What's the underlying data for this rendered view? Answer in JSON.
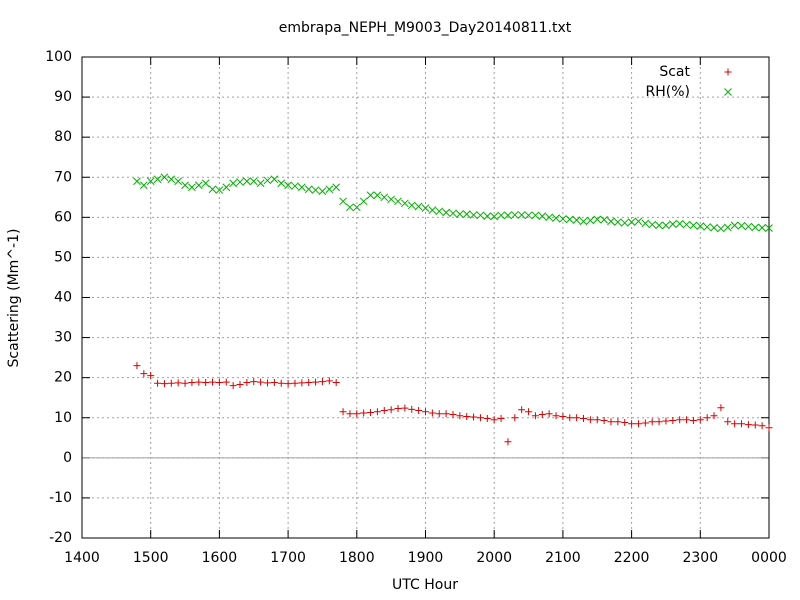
{
  "chart_data": {
    "type": "scatter",
    "title": "embrapa_NEPH_M9003_Day20140811.txt",
    "x_label": "UTC Hour",
    "y_label": "Scattering (Mm^-1)",
    "xlim": [
      1400,
      2400
    ],
    "xticks": [
      1400,
      1500,
      1600,
      1700,
      1800,
      1900,
      2000,
      2100,
      2200,
      2300,
      {
        "value": 2400,
        "label": "0000"
      }
    ],
    "ylim": [
      -20,
      100
    ],
    "yticks": [
      -20,
      -10,
      0,
      10,
      20,
      30,
      40,
      50,
      60,
      70,
      80,
      90,
      100
    ],
    "grid": true,
    "legend": "top-right",
    "x": [
      1480,
      1490,
      1500,
      1510,
      1520,
      1530,
      1540,
      1550,
      1560,
      1570,
      1580,
      1590,
      1600,
      1610,
      1620,
      1630,
      1640,
      1650,
      1660,
      1670,
      1680,
      1690,
      1700,
      1710,
      1720,
      1730,
      1740,
      1750,
      1760,
      1770,
      1780,
      1790,
      1800,
      1810,
      1820,
      1830,
      1840,
      1850,
      1860,
      1870,
      1880,
      1890,
      1900,
      1910,
      1920,
      1930,
      1940,
      1950,
      1960,
      1970,
      1980,
      1990,
      2000,
      2010,
      2020,
      2030,
      2040,
      2050,
      2060,
      2070,
      2080,
      2090,
      2100,
      2110,
      2120,
      2130,
      2140,
      2150,
      2160,
      2170,
      2180,
      2190,
      2200,
      2210,
      2220,
      2230,
      2240,
      2250,
      2260,
      2270,
      2280,
      2290,
      2300,
      2310,
      2320,
      2330,
      2340,
      2350,
      2360,
      2370,
      2380,
      2390,
      2400
    ],
    "series": [
      {
        "name": "Scat",
        "color": "#e00000",
        "marker": "+",
        "values": [
          23,
          21,
          20.5,
          18.6,
          18.5,
          18.6,
          18.7,
          18.6,
          18.8,
          18.9,
          18.8,
          18.9,
          18.8,
          18.9,
          18,
          18.3,
          18.8,
          19,
          18.9,
          18.7,
          18.8,
          18.6,
          18.5,
          18.6,
          18.7,
          18.8,
          18.9,
          19,
          19.2,
          18.8,
          11.5,
          11,
          11,
          11.2,
          11.3,
          11.5,
          11.8,
          12,
          12.3,
          12.4,
          12.1,
          11.8,
          11.5,
          11.2,
          11,
          11,
          10.8,
          10.5,
          10.3,
          10.2,
          10,
          9.8,
          9.5,
          9.8,
          4,
          10,
          12,
          11.5,
          10.5,
          10.8,
          11,
          10.5,
          10.3,
          10,
          10,
          9.8,
          9.5,
          9.5,
          9.3,
          9,
          9,
          8.8,
          8.5,
          8.5,
          8.7,
          9,
          9,
          9.2,
          9.3,
          9.5,
          9.5,
          9.3,
          9.5,
          10,
          10.5,
          12.5,
          9,
          8.5,
          8.5,
          8.3,
          8.2,
          8,
          7.5
        ]
      },
      {
        "name": "RH(%)",
        "color": "#00b000",
        "marker": "x",
        "values": [
          69,
          68,
          69,
          69.5,
          70,
          69.5,
          69,
          68,
          67.5,
          68,
          68.5,
          67,
          66.8,
          67.5,
          68.5,
          68.8,
          69,
          69,
          68.5,
          69.2,
          69.5,
          68.5,
          68,
          67.8,
          67.5,
          67,
          66.8,
          66.5,
          67,
          67.5,
          64,
          62.5,
          62.5,
          64,
          65.5,
          65.5,
          65,
          64.5,
          64,
          63.5,
          63,
          62.7,
          62.3,
          61.8,
          61.5,
          61.2,
          61,
          60.8,
          60.8,
          60.6,
          60.5,
          60.3,
          60.2,
          60.5,
          60.5,
          60.6,
          60.6,
          60.5,
          60.5,
          60.3,
          60,
          59.8,
          59.6,
          59.5,
          59.3,
          59,
          59.2,
          59.5,
          59.4,
          59,
          58.8,
          58.6,
          58.8,
          59,
          58.5,
          58.2,
          58,
          58,
          58.3,
          58.4,
          58.2,
          58,
          57.8,
          57.6,
          57.4,
          57.2,
          57.5,
          58,
          57.9,
          57.7,
          57.5,
          57.4,
          57.3
        ]
      }
    ]
  }
}
